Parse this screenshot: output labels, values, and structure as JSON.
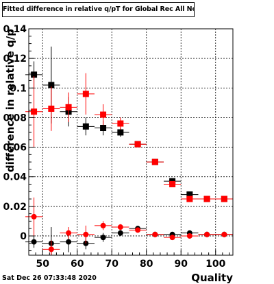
{
  "title": "Fitted difference in relative q/pT for Global Rec All NoHits",
  "datestamp": "Sat Dec 26 07:33:48 2020",
  "chart_data": {
    "type": "scatter",
    "title": "Fitted difference in relative q/pT for Global Rec All NoHits",
    "xlabel": "Quality",
    "ylabel": "difference in relative q/p",
    "xlim": [
      46,
      105
    ],
    "ylim": [
      -0.013,
      0.14
    ],
    "xticks": [
      50,
      60,
      70,
      80,
      90,
      100
    ],
    "yticks": [
      0,
      0.02,
      0.04,
      0.06,
      0.08,
      0.1,
      0.12,
      0.14
    ],
    "ytick_labels": [
      "0",
      "0.02",
      "0.04",
      "0.06",
      "0.08",
      "0.1",
      "0.12",
      "0.14"
    ],
    "xtick_labels": [
      "50",
      "60",
      "70",
      "80",
      "90",
      "100"
    ],
    "grid": true,
    "series": [
      {
        "color": "#000000",
        "marker": "square",
        "x": [
          47.5,
          52.5,
          57.5,
          62.5,
          67.5,
          72.5,
          77.5,
          82.5,
          87.5,
          92.5,
          97.5,
          102.5
        ],
        "y": [
          0.109,
          0.102,
          0.084,
          0.074,
          0.073,
          0.07,
          0.062,
          0.05,
          0.037,
          0.028,
          0.025,
          0.025
        ],
        "err": [
          0.009,
          0.026,
          0.01,
          0.006,
          0.005,
          0.003,
          0.002,
          0.0015,
          0.0015,
          0.001,
          0.001,
          0.001
        ]
      },
      {
        "color": "#ff0000",
        "marker": "square",
        "x": [
          47.5,
          52.5,
          57.5,
          62.5,
          67.5,
          72.5,
          77.5,
          82.5,
          87.5,
          92.5,
          97.5,
          102.5
        ],
        "y": [
          0.084,
          0.086,
          0.087,
          0.096,
          0.082,
          0.076,
          0.062,
          0.05,
          0.035,
          0.025,
          0.025,
          0.025
        ],
        "err": [
          0.024,
          0.015,
          0.01,
          0.014,
          0.007,
          0.004,
          0.002,
          0.0015,
          0.0015,
          0.001,
          0.001,
          0.001
        ]
      },
      {
        "color": "#000000",
        "marker": "circle",
        "x": [
          47.5,
          52.5,
          57.5,
          62.5,
          67.5,
          72.5,
          77.5,
          82.5,
          87.5,
          92.5,
          97.5,
          102.5
        ],
        "y": [
          -0.004,
          -0.005,
          -0.004,
          -0.005,
          -0.001,
          0.002,
          0.005,
          0.001,
          0.001,
          0.002,
          0.001,
          0.001
        ],
        "err": [
          0.004,
          0.011,
          0.007,
          0.004,
          0.003,
          0.002,
          0.001,
          0.001,
          0.001,
          0.0008,
          0.0008,
          0.0008
        ]
      },
      {
        "color": "#ff0000",
        "marker": "circle",
        "x": [
          47.5,
          52.5,
          57.5,
          62.5,
          67.5,
          72.5,
          77.5,
          82.5,
          87.5,
          92.5,
          97.5,
          102.5
        ],
        "y": [
          0.013,
          -0.009,
          0.002,
          0.001,
          0.007,
          0.006,
          0.004,
          0.001,
          -0.001,
          0.0,
          0.001,
          0.001
        ],
        "err": [
          0.013,
          0.006,
          0.004,
          0.006,
          0.003,
          0.002,
          0.0015,
          0.001,
          0.001,
          0.0008,
          0.0008,
          0.0008
        ]
      }
    ]
  }
}
